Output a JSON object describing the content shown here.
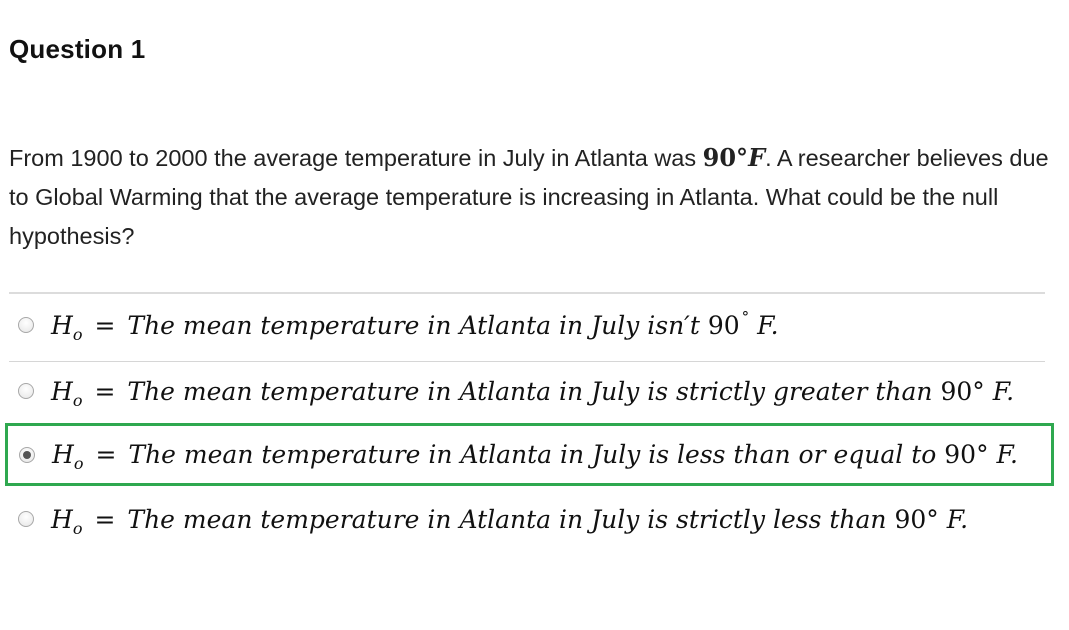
{
  "question": {
    "title": "Question 1",
    "prompt_part1": "From 1900 to 2000 the average temperature in July in Atlanta was ",
    "prompt_math_value": "90°",
    "prompt_math_unit": "F",
    "prompt_part2": ". A researcher believes due to Global Warming that the average temperature is increasing in Atlanta. What could be the null hypothesis?"
  },
  "options": [
    {
      "h": "H",
      "sub": "o",
      "eq": "=",
      "statement": "The mean temperature in Atlanta in July isn′t ",
      "value": "90",
      "degree": "°",
      "unit": " F.",
      "selected": false
    },
    {
      "h": "H",
      "sub": "o",
      "eq": "=",
      "statement": "The mean temperature in Atlanta in July is strictly greater than ",
      "value": "90°",
      "unit": " F.",
      "selected": false
    },
    {
      "h": "H",
      "sub": "o",
      "eq": "=",
      "statement": "The mean temperature in Atlanta in July is less than or equal to ",
      "value": "90°",
      "unit": " F.",
      "selected": true
    },
    {
      "h": "H",
      "sub": "o",
      "eq": "=",
      "statement": "The mean temperature in Atlanta in July is strictly less than ",
      "value": "90°",
      "unit": " F.",
      "selected": false
    }
  ],
  "colors": {
    "selection_border": "#2fa84f",
    "divider": "#d6d6d6",
    "text": "#111111"
  }
}
